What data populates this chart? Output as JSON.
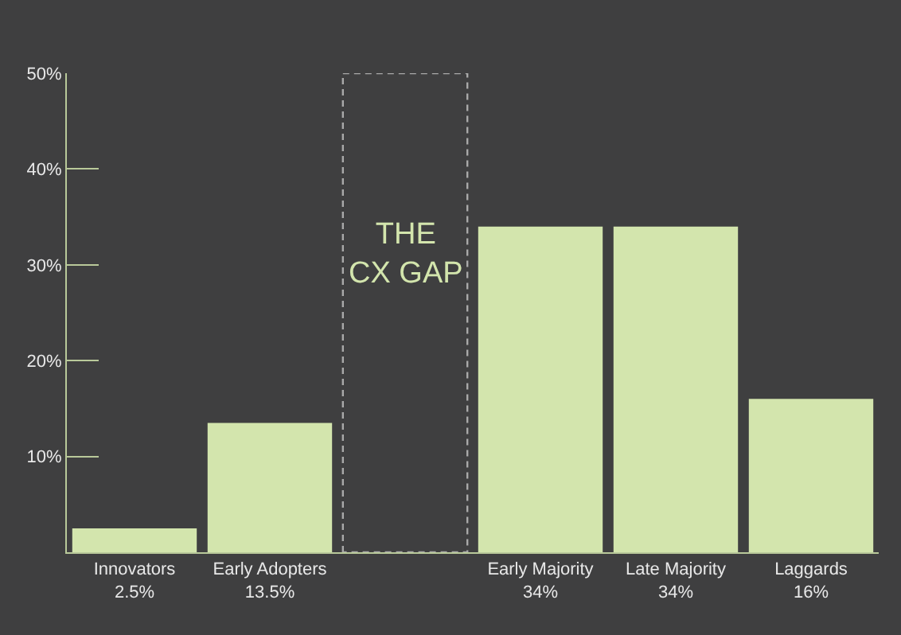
{
  "chart_data": {
    "type": "bar",
    "categories": [
      "Innovators",
      "Early Adopters",
      null,
      "Early Majority",
      "Late Majority",
      "Laggards"
    ],
    "series": [
      {
        "color": "#d3e5ad",
        "values": [
          2.5,
          13.5,
          null,
          34,
          34,
          16
        ],
        "value_labels": [
          "2.5%",
          "13.5%",
          null,
          "34%",
          "34%",
          "16%"
        ]
      },
      {
        "color": "#a9a9a9",
        "values": [
          null,
          null,
          50,
          null,
          null,
          null
        ],
        "line_style": "dashed"
      }
    ],
    "ylim": [
      0,
      50
    ],
    "yticks": [
      {
        "value": 10,
        "label": "10%"
      },
      {
        "value": 20,
        "label": "20%"
      },
      {
        "value": 30,
        "label": "30%"
      },
      {
        "value": 40,
        "label": "40%"
      },
      {
        "value": 50,
        "label": "50%"
      }
    ],
    "annotations": [
      "THE\nCX GAP"
    ],
    "grid": false
  }
}
